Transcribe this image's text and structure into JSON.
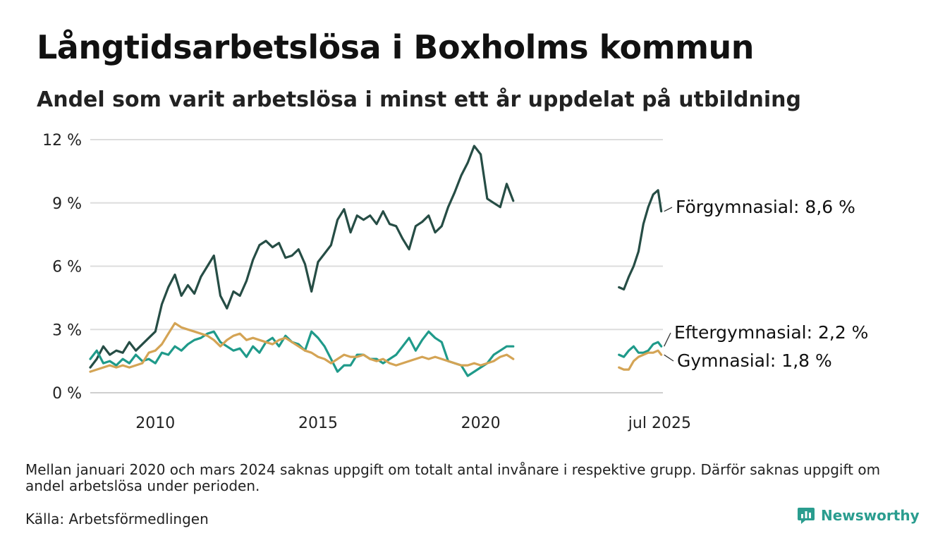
{
  "title": "Långtidsarbetslösa i Boxholms kommun",
  "subtitle": "Andel som varit arbetslösa i minst ett år uppdelat på utbildning",
  "note": "Mellan januari 2020 och mars 2024 saknas uppgift om totalt antal invånare i respektive grupp. Därför saknas uppgift om andel arbetslösa under perioden.",
  "source": "Källa: Arbetsförmedlingen",
  "brand": "Newsworthy",
  "chart_data": {
    "type": "line",
    "xlabel": "",
    "ylabel": "",
    "ylim": [
      0,
      12
    ],
    "yticks": [
      0,
      3,
      6,
      9,
      12
    ],
    "ytick_labels": [
      "0 %",
      "3 %",
      "6 %",
      "9 %",
      "12 %"
    ],
    "xticks": [
      2010,
      2015,
      2020,
      2025.5
    ],
    "xtick_labels": [
      "2010",
      "2015",
      "2020",
      "jul 2025"
    ],
    "x_range": [
      2008.0,
      2025.6
    ],
    "grid": true,
    "legend": "direct labels at line ends (right)",
    "gap_note": "no data between early 2021 and mid 2024",
    "series": [
      {
        "name": "Förgymnasial",
        "end_label": "Förgymnasial: 8,6 %",
        "color": "#264d45",
        "segments": [
          {
            "x": [
              2008.0,
              2008.2,
              2008.4,
              2008.6,
              2008.8,
              2009.0,
              2009.2,
              2009.4,
              2009.6,
              2009.8,
              2010.0,
              2010.2,
              2010.4,
              2010.6,
              2010.8,
              2011.0,
              2011.2,
              2011.4,
              2011.6,
              2011.8,
              2012.0,
              2012.2,
              2012.4,
              2012.6,
              2012.8,
              2013.0,
              2013.2,
              2013.4,
              2013.6,
              2013.8,
              2014.0,
              2014.2,
              2014.4,
              2014.6,
              2014.8,
              2015.0,
              2015.2,
              2015.4,
              2015.6,
              2015.8,
              2016.0,
              2016.2,
              2016.4,
              2016.6,
              2016.8,
              2017.0,
              2017.2,
              2017.4,
              2017.6,
              2017.8,
              2018.0,
              2018.2,
              2018.4,
              2018.6,
              2018.8,
              2019.0,
              2019.2,
              2019.4,
              2019.6,
              2019.8,
              2020.0,
              2020.2,
              2020.4,
              2020.6,
              2020.8,
              2021.0
            ],
            "y": [
              1.2,
              1.6,
              2.2,
              1.8,
              2.0,
              1.9,
              2.4,
              2.0,
              2.3,
              2.6,
              2.9,
              4.2,
              5.0,
              5.6,
              4.6,
              5.1,
              4.7,
              5.5,
              6.0,
              6.5,
              4.6,
              4.0,
              4.8,
              4.6,
              5.3,
              6.3,
              7.0,
              7.2,
              6.9,
              7.1,
              6.4,
              6.5,
              6.8,
              6.1,
              4.8,
              6.2,
              6.6,
              7.0,
              8.2,
              8.7,
              7.6,
              8.4,
              8.2,
              8.4,
              8.0,
              8.6,
              8.0,
              7.9,
              7.3,
              6.8,
              7.9,
              8.1,
              8.4,
              7.6,
              7.9,
              8.8,
              9.5,
              10.3,
              10.9,
              11.7,
              11.3,
              9.2,
              9.0,
              8.8,
              9.9,
              9.1
            ]
          },
          {
            "x": [
              2024.25,
              2024.4,
              2024.55,
              2024.7,
              2024.85,
              2025.0,
              2025.15,
              2025.3,
              2025.45,
              2025.55
            ],
            "y": [
              5.0,
              4.9,
              5.5,
              6.0,
              6.7,
              8.0,
              8.8,
              9.4,
              9.6,
              8.6
            ]
          }
        ]
      },
      {
        "name": "Eftergymnasial",
        "end_label": "Eftergymnasial: 2,2 %",
        "color": "#1f9a8a",
        "segments": [
          {
            "x": [
              2008.0,
              2008.2,
              2008.4,
              2008.6,
              2008.8,
              2009.0,
              2009.2,
              2009.4,
              2009.6,
              2009.8,
              2010.0,
              2010.2,
              2010.4,
              2010.6,
              2010.8,
              2011.0,
              2011.2,
              2011.4,
              2011.6,
              2011.8,
              2012.0,
              2012.2,
              2012.4,
              2012.6,
              2012.8,
              2013.0,
              2013.2,
              2013.4,
              2013.6,
              2013.8,
              2014.0,
              2014.2,
              2014.4,
              2014.6,
              2014.8,
              2015.0,
              2015.2,
              2015.4,
              2015.6,
              2015.8,
              2016.0,
              2016.2,
              2016.4,
              2016.6,
              2016.8,
              2017.0,
              2017.2,
              2017.4,
              2017.6,
              2017.8,
              2018.0,
              2018.2,
              2018.4,
              2018.6,
              2018.8,
              2019.0,
              2019.2,
              2019.4,
              2019.6,
              2019.8,
              2020.0,
              2020.2,
              2020.4,
              2020.6,
              2020.8,
              2021.0
            ],
            "y": [
              1.6,
              2.0,
              1.4,
              1.5,
              1.3,
              1.6,
              1.4,
              1.8,
              1.5,
              1.6,
              1.4,
              1.9,
              1.8,
              2.2,
              2.0,
              2.3,
              2.5,
              2.6,
              2.8,
              2.9,
              2.4,
              2.2,
              2.0,
              2.1,
              1.7,
              2.2,
              1.9,
              2.4,
              2.6,
              2.2,
              2.7,
              2.4,
              2.3,
              2.0,
              2.9,
              2.6,
              2.2,
              1.6,
              1.0,
              1.3,
              1.3,
              1.8,
              1.8,
              1.6,
              1.6,
              1.4,
              1.6,
              1.8,
              2.2,
              2.6,
              2.0,
              2.5,
              2.9,
              2.6,
              2.4,
              1.5,
              1.4,
              1.3,
              0.8,
              1.0,
              1.2,
              1.4,
              1.8,
              2.0,
              2.2,
              2.2
            ]
          },
          {
            "x": [
              2024.25,
              2024.4,
              2024.55,
              2024.7,
              2024.85,
              2025.0,
              2025.15,
              2025.3,
              2025.45,
              2025.55
            ],
            "y": [
              1.8,
              1.7,
              2.0,
              2.2,
              1.9,
              1.9,
              2.0,
              2.3,
              2.4,
              2.2
            ]
          }
        ]
      },
      {
        "name": "Gymnasial",
        "end_label": "Gymnasial: 1,8 %",
        "color": "#d4a455",
        "segments": [
          {
            "x": [
              2008.0,
              2008.2,
              2008.4,
              2008.6,
              2008.8,
              2009.0,
              2009.2,
              2009.4,
              2009.6,
              2009.8,
              2010.0,
              2010.2,
              2010.4,
              2010.6,
              2010.8,
              2011.0,
              2011.2,
              2011.4,
              2011.6,
              2011.8,
              2012.0,
              2012.2,
              2012.4,
              2012.6,
              2012.8,
              2013.0,
              2013.2,
              2013.4,
              2013.6,
              2013.8,
              2014.0,
              2014.2,
              2014.4,
              2014.6,
              2014.8,
              2015.0,
              2015.2,
              2015.4,
              2015.6,
              2015.8,
              2016.0,
              2016.2,
              2016.4,
              2016.6,
              2016.8,
              2017.0,
              2017.2,
              2017.4,
              2017.6,
              2017.8,
              2018.0,
              2018.2,
              2018.4,
              2018.6,
              2018.8,
              2019.0,
              2019.2,
              2019.4,
              2019.6,
              2019.8,
              2020.0,
              2020.2,
              2020.4,
              2020.6,
              2020.8,
              2021.0
            ],
            "y": [
              1.0,
              1.1,
              1.2,
              1.3,
              1.2,
              1.3,
              1.2,
              1.3,
              1.4,
              1.9,
              2.0,
              2.3,
              2.8,
              3.3,
              3.1,
              3.0,
              2.9,
              2.8,
              2.7,
              2.5,
              2.2,
              2.5,
              2.7,
              2.8,
              2.5,
              2.6,
              2.5,
              2.4,
              2.3,
              2.5,
              2.6,
              2.4,
              2.2,
              2.0,
              1.9,
              1.7,
              1.6,
              1.4,
              1.6,
              1.8,
              1.7,
              1.7,
              1.8,
              1.6,
              1.5,
              1.6,
              1.4,
              1.3,
              1.4,
              1.5,
              1.6,
              1.7,
              1.6,
              1.7,
              1.6,
              1.5,
              1.4,
              1.3,
              1.3,
              1.4,
              1.3,
              1.4,
              1.5,
              1.7,
              1.8,
              1.6
            ]
          },
          {
            "x": [
              2024.25,
              2024.4,
              2024.55,
              2024.7,
              2024.85,
              2025.0,
              2025.15,
              2025.3,
              2025.45,
              2025.55
            ],
            "y": [
              1.2,
              1.1,
              1.1,
              1.5,
              1.7,
              1.8,
              1.9,
              1.9,
              2.0,
              1.8
            ]
          }
        ]
      }
    ]
  }
}
